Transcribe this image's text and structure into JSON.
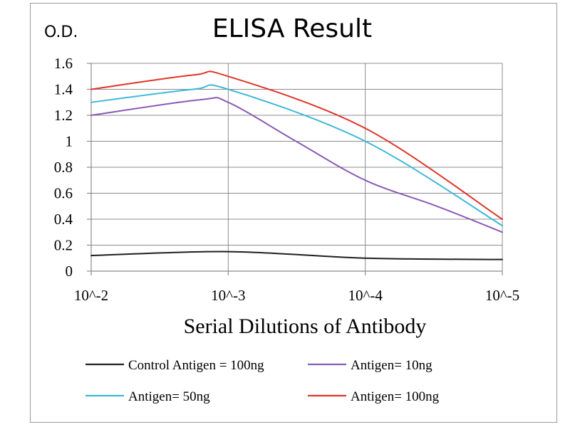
{
  "chart_data": {
    "type": "line",
    "title": "ELISA Result",
    "ylabel": "O.D.",
    "xlabel": "Serial  Dilutions  of Antibody",
    "x_ticks": [
      "10^-2",
      "10^-3",
      "10^-4",
      "10^-5"
    ],
    "y_ticks": [
      "1.6",
      "1.4",
      "1.2",
      "1",
      "0.8",
      "0.6",
      "0.4",
      "0.2",
      "0"
    ],
    "ylim": [
      0,
      1.6
    ],
    "x_scale": "log (dilution)",
    "grid": true,
    "legend_position": "bottom",
    "x": [
      0.01,
      0.0005,
      0.001,
      0.0001,
      1e-05
    ],
    "series": [
      {
        "name": "Control Antigen = 100ng",
        "color": "#1f1f1f",
        "points": [
          [
            0.01,
            0.12
          ],
          [
            0.001,
            0.15
          ],
          [
            0.0001,
            0.1
          ],
          [
            1e-05,
            0.09
          ]
        ]
      },
      {
        "name": "Antigen= 10ng",
        "color": "#8a5bb5",
        "points": [
          [
            0.01,
            1.2
          ],
          [
            0.0016,
            1.32
          ],
          [
            0.001,
            1.3
          ],
          [
            0.00032,
            1.0
          ],
          [
            0.0001,
            0.7
          ],
          [
            3e-05,
            0.5
          ],
          [
            1e-05,
            0.3
          ]
        ]
      },
      {
        "name": "Antigen= 50ng",
        "color": "#3fb8d8",
        "points": [
          [
            0.01,
            1.3
          ],
          [
            0.0018,
            1.4
          ],
          [
            0.001,
            1.4
          ],
          [
            0.0001,
            1.0
          ],
          [
            1e-05,
            0.35
          ]
        ]
      },
      {
        "name": "Antigen= 100ng",
        "color": "#e0342a",
        "points": [
          [
            0.01,
            1.4
          ],
          [
            0.0018,
            1.51
          ],
          [
            0.001,
            1.5
          ],
          [
            0.0001,
            1.1
          ],
          [
            1e-05,
            0.4
          ]
        ]
      }
    ]
  }
}
